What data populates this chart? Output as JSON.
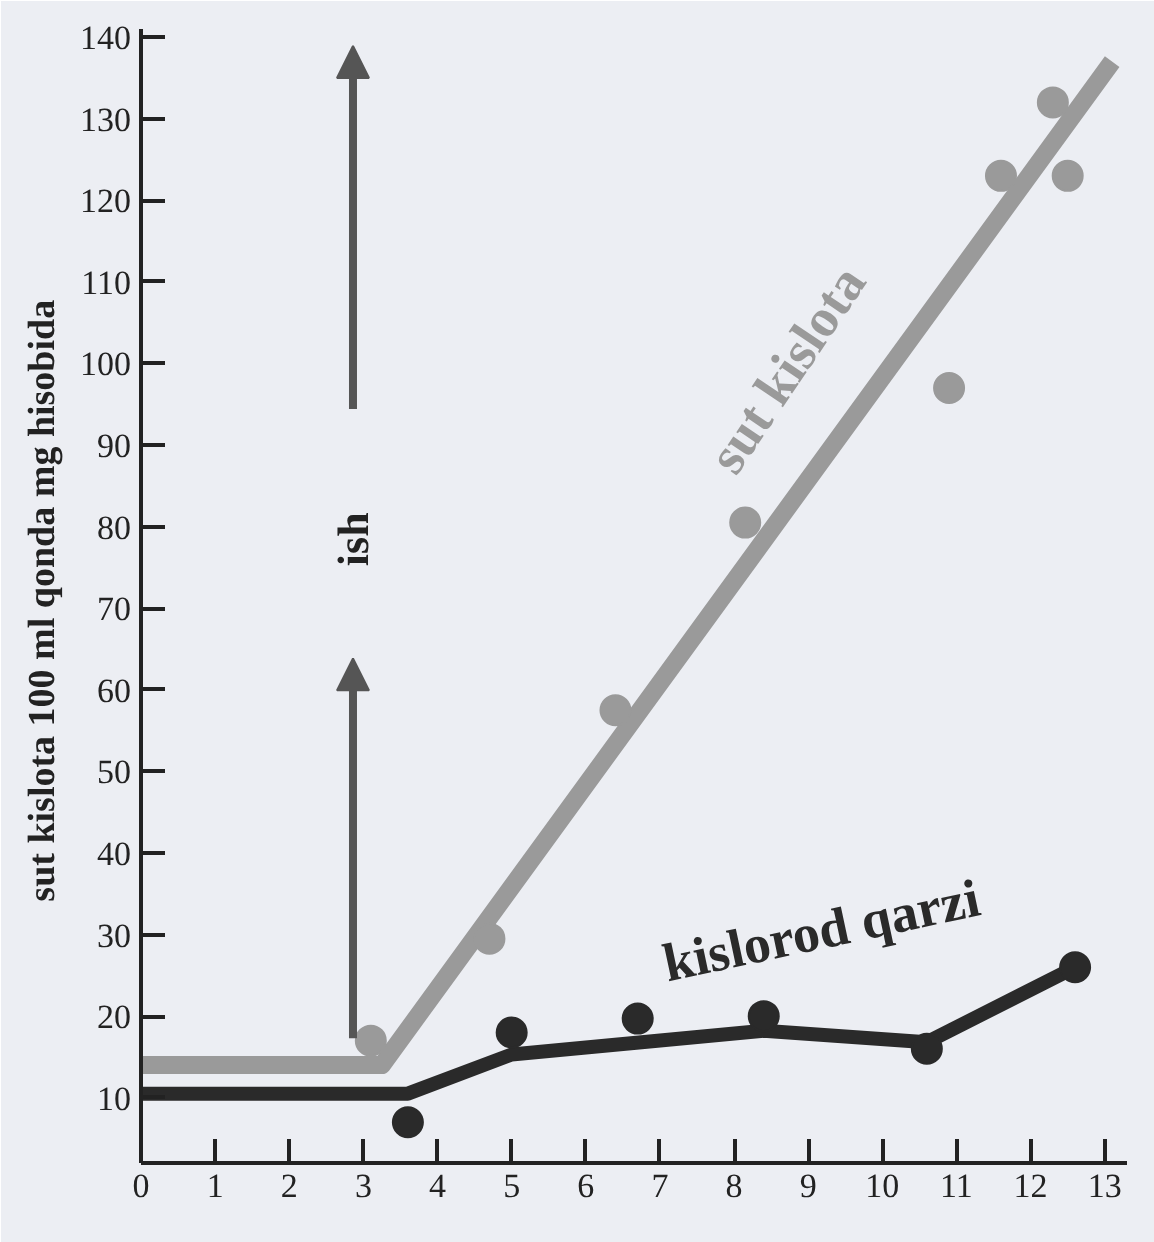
{
  "chart_data": {
    "type": "line",
    "ylabel": "sut kislota  100 ml qonda mg hisobida",
    "annotations": [
      "ish"
    ],
    "xlim": [
      0,
      13.3
    ],
    "ylim": [
      2,
      141
    ],
    "xticks": [
      0,
      1,
      2,
      3,
      4,
      5,
      6,
      7,
      8,
      9,
      10,
      11,
      12,
      13
    ],
    "yticks": [
      10,
      20,
      30,
      40,
      50,
      60,
      70,
      80,
      90,
      100,
      110,
      120,
      130,
      140
    ],
    "grid": false,
    "legend": false,
    "series": [
      {
        "name": "sut kislota",
        "color": "#9a9a9a",
        "marker": "none",
        "x": [
          0,
          3.25,
          13.1
        ],
        "values": [
          14,
          14,
          137
        ]
      },
      {
        "color": "#9a9a9a",
        "type": "scatter",
        "marker": "circle",
        "x": [
          3.1,
          4.7,
          6.4,
          8.15,
          10.9,
          11.6,
          12.3,
          12.5
        ],
        "values": [
          17,
          29.5,
          57.5,
          80.5,
          97,
          123,
          132,
          123
        ]
      },
      {
        "name": "kislorod qarzi",
        "color": "#2a2a2a",
        "marker": "none",
        "x": [
          0,
          3.6,
          5,
          8.4,
          10.6,
          12.6
        ],
        "values": [
          10.5,
          10.5,
          15.3,
          18.2,
          16.8,
          26
        ]
      },
      {
        "color": "#2a2a2a",
        "type": "scatter",
        "marker": "circle",
        "x": [
          3.6,
          5,
          6.7,
          8.4,
          10.6,
          12.6
        ],
        "values": [
          7,
          18,
          19.7,
          20,
          16,
          26
        ]
      }
    ]
  }
}
